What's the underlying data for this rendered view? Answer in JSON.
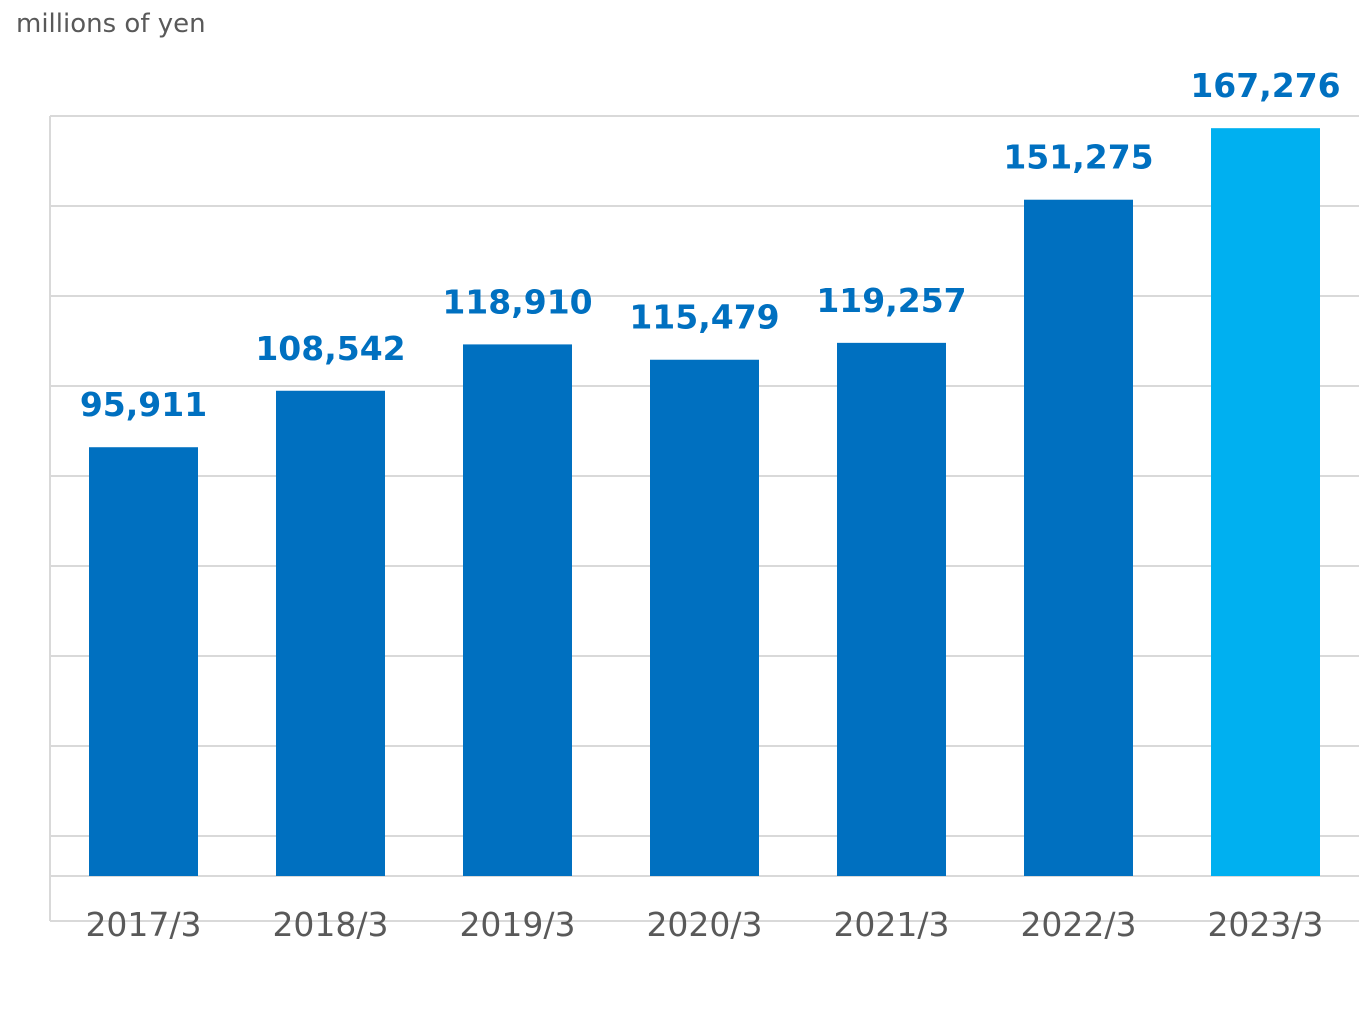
{
  "chart_data": {
    "type": "bar",
    "unit_label": "millions of yen",
    "categories": [
      "2017/3",
      "2018/3",
      "2019/3",
      "2020/3",
      "2021/3",
      "2022/3",
      "2023/3"
    ],
    "values": [
      95911,
      108542,
      118910,
      115479,
      119257,
      151275,
      167276
    ],
    "value_labels": [
      "95,911",
      "108,542",
      "118,910",
      "115,479",
      "119,257",
      "151,275",
      "167,276"
    ],
    "highlight_index": 6,
    "ylim": [
      0,
      170000
    ],
    "grid": true,
    "colors": {
      "bar": "#0070C0",
      "highlight_bar": "#00B0F0",
      "label": "#0070C0",
      "grid": "#D9D9D9",
      "axis_text": "#595959"
    }
  }
}
